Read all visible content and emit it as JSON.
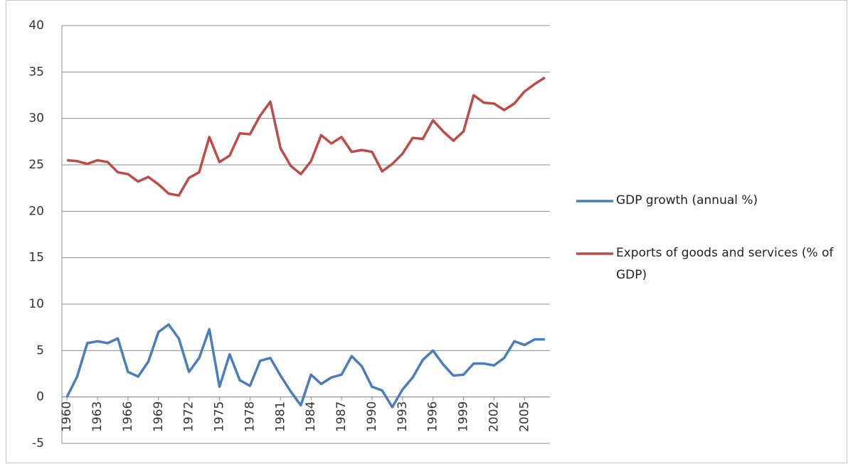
{
  "chart_data": {
    "type": "line",
    "x": [
      1960,
      1961,
      1962,
      1963,
      1964,
      1965,
      1966,
      1967,
      1968,
      1969,
      1970,
      1971,
      1972,
      1973,
      1974,
      1975,
      1976,
      1977,
      1978,
      1979,
      1980,
      1981,
      1982,
      1983,
      1984,
      1985,
      1986,
      1987,
      1988,
      1989,
      1990,
      1991,
      1992,
      1993,
      1994,
      1995,
      1996,
      1997,
      1998,
      1999,
      2000,
      2001,
      2002,
      2003,
      2004,
      2005,
      2006,
      2007
    ],
    "xlim": [
      1959.5,
      2007.5
    ],
    "xticks": [
      1960,
      1963,
      1966,
      1969,
      1972,
      1975,
      1978,
      1981,
      1984,
      1987,
      1990,
      1993,
      1996,
      1999,
      2002,
      2005
    ],
    "ylim": [
      -5,
      40
    ],
    "yticks": [
      -5,
      0,
      5,
      10,
      15,
      20,
      25,
      30,
      35,
      40
    ],
    "grid": true,
    "legend": "right",
    "series": [
      {
        "name": "GDP growth (annual %)",
        "color": "#4a7ebb",
        "values": [
          0,
          2.2,
          5.8,
          6.0,
          5.8,
          6.3,
          2.7,
          2.2,
          3.8,
          7.0,
          7.8,
          6.3,
          2.7,
          4.2,
          7.3,
          1.1,
          4.6,
          1.8,
          1.2,
          3.9,
          4.2,
          2.3,
          0.6,
          -0.9,
          2.4,
          1.4,
          2.1,
          2.4,
          4.4,
          3.3,
          1.1,
          0.7,
          -1.1,
          0.8,
          2.1,
          4.0,
          5.0,
          3.5,
          2.3,
          2.4,
          3.6,
          3.6,
          3.4,
          4.2,
          6.0,
          5.6,
          6.2,
          6.2
        ]
      },
      {
        "name": "Exports of goods and services (% of GDP)",
        "color": "#be4b48",
        "values": [
          25.5,
          25.4,
          25.1,
          25.5,
          25.3,
          24.2,
          24.0,
          23.2,
          23.7,
          22.9,
          21.9,
          21.7,
          23.6,
          24.2,
          28.0,
          25.3,
          26.0,
          28.4,
          28.3,
          30.3,
          31.8,
          26.8,
          24.9,
          24.0,
          25.4,
          28.2,
          27.3,
          28.0,
          26.4,
          26.6,
          26.4,
          24.3,
          25.1,
          26.2,
          27.9,
          27.8,
          29.8,
          28.6,
          27.6,
          28.6,
          32.5,
          31.7,
          31.6,
          30.9,
          31.6,
          32.9,
          33.7,
          34.4
        ]
      }
    ]
  }
}
